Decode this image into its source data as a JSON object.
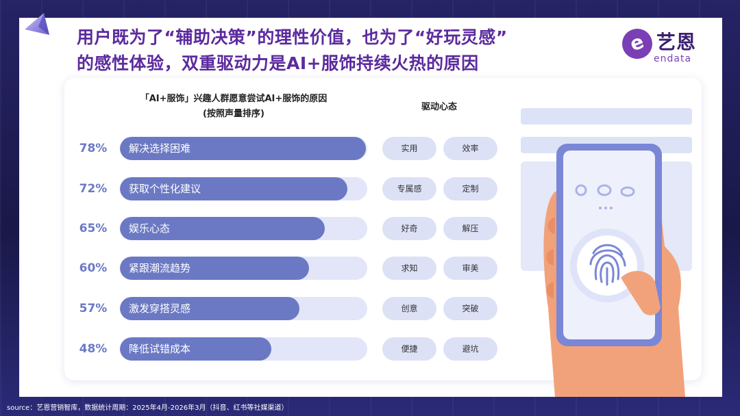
{
  "header": {
    "title_line1": "用户既为了“辅助决策”的理性价值，也为了“好玩灵感”",
    "title_line2": "的感性体验，双重驱动力是AI+服饰持续火热的原因",
    "logo_cn": "艺恩",
    "logo_en": "endata",
    "logo_mark": "e"
  },
  "chart_title_line1": "「AI+服饰」兴趣人群愿意尝试AI+服饰的原因",
  "chart_title_line2": "(按照声量排序)",
  "drivers_title": "驱动心态",
  "rows": [
    {
      "pct": "78%",
      "label": "解决选择困难",
      "tag1": "实用",
      "tag2": "效率"
    },
    {
      "pct": "72%",
      "label": "获取个性化建议",
      "tag1": "专属感",
      "tag2": "定制"
    },
    {
      "pct": "65%",
      "label": "娱乐心态",
      "tag1": "好奇",
      "tag2": "解压"
    },
    {
      "pct": "60%",
      "label": "紧跟潮流趋势",
      "tag1": "求知",
      "tag2": "审美"
    },
    {
      "pct": "57%",
      "label": "激发穿搭灵感",
      "tag1": "创意",
      "tag2": "突破"
    },
    {
      "pct": "48%",
      "label": "降低试错成本",
      "tag1": "便捷",
      "tag2": "避坑"
    }
  ],
  "chart_data": {
    "type": "bar",
    "title": "「AI+服饰」兴趣人群愿意尝试AI+服饰的原因",
    "subtitle": "(按照声量排序)",
    "categories": [
      "解决选择困难",
      "获取个性化建议",
      "娱乐心态",
      "紧跟潮流趋势",
      "激发穿搭灵感",
      "降低试错成本"
    ],
    "values": [
      78,
      72,
      65,
      60,
      57,
      48
    ],
    "unit": "%",
    "orientation": "horizontal",
    "ylim": [
      0,
      100
    ],
    "grid": false,
    "bar_color": "#6b79c4",
    "track_color": "#e3e6f8"
  },
  "footer": "source：艺恩营销智库，数据统计周期：2025年4月-2026年3月（抖音、红书等社媒渠道）",
  "illustration": {
    "icons": [
      "chat-bubble-icon",
      "wechat-icon",
      "weibo-icon",
      "fingerprint-icon"
    ]
  },
  "colors": {
    "title": "#5b2a9e",
    "accent": "#6b79c4",
    "pill": "#dde1f6",
    "phone": "#7a86d6"
  }
}
